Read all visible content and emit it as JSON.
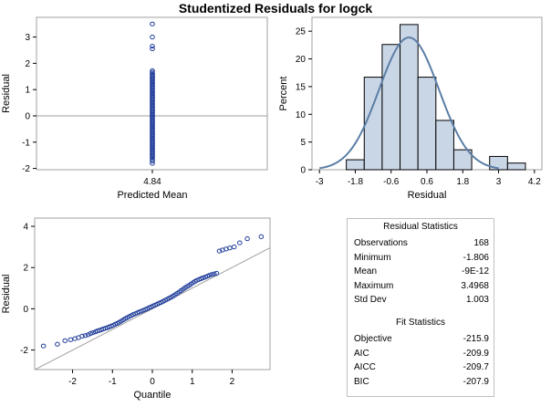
{
  "title": "Studentized Residuals for logck",
  "chart_data": [
    {
      "type": "scatter",
      "id": "residual-vs-predicted",
      "xlabel": "Predicted Mean",
      "ylabel": "Residual",
      "x_ticks": [
        "4.84"
      ],
      "y_ticks": [
        "-2",
        "-1",
        "0",
        "1",
        "2",
        "3"
      ],
      "ylim": [
        -2.05,
        3.75
      ],
      "reference_line_y": 0,
      "x_value": 4.84,
      "y_values": [
        3.4968,
        3.0,
        2.65,
        2.55,
        1.72,
        1.66,
        1.6,
        1.55,
        1.5,
        1.45,
        1.4,
        1.35,
        1.3,
        1.25,
        1.2,
        1.15,
        1.1,
        1.05,
        1.0,
        0.95,
        0.9,
        0.85,
        0.8,
        0.75,
        0.7,
        0.65,
        0.6,
        0.55,
        0.5,
        0.45,
        0.4,
        0.35,
        0.3,
        0.25,
        0.2,
        0.15,
        0.1,
        0.05,
        0.0,
        -0.05,
        -0.1,
        -0.15,
        -0.2,
        -0.25,
        -0.3,
        -0.35,
        -0.4,
        -0.45,
        -0.5,
        -0.55,
        -0.6,
        -0.65,
        -0.7,
        -0.75,
        -0.8,
        -0.85,
        -0.9,
        -0.95,
        -1.0,
        -1.05,
        -1.1,
        -1.15,
        -1.2,
        -1.25,
        -1.3,
        -1.35,
        -1.4,
        -1.45,
        -1.5,
        -1.55,
        -1.6,
        -1.66,
        -1.72,
        -1.806
      ],
      "marker_color": "#1f3c99"
    },
    {
      "type": "bar",
      "id": "residual-histogram",
      "xlabel": "Residual",
      "ylabel": "Percent",
      "x_ticks": [
        "-3",
        "-1.8",
        "-0.6",
        "0.6",
        "1.8",
        "3",
        "4.2"
      ],
      "x_tick_values": [
        -3,
        -1.8,
        -0.6,
        0.6,
        1.8,
        3,
        4.2
      ],
      "y_ticks": [
        "0",
        "5",
        "10",
        "15",
        "20",
        "25"
      ],
      "ylim": [
        0,
        27.5
      ],
      "xlim": [
        -3.25,
        4.45
      ],
      "bin_width": 0.6,
      "bin_starts": [
        -2.1,
        -1.5,
        -0.9,
        -0.3,
        0.3,
        0.9,
        1.5,
        2.1,
        2.7,
        3.3
      ],
      "values": [
        1.8,
        16.7,
        22.6,
        26.2,
        16.7,
        8.9,
        3.6,
        0.0,
        2.4,
        1.2
      ],
      "density_curve": {
        "type": "normal",
        "mean": 0.0,
        "std": 1.003,
        "color": "#5b7ea6"
      },
      "bar_fill": "#c9d6e6",
      "bar_stroke": "#000000"
    },
    {
      "type": "scatter",
      "id": "qq-plot",
      "xlabel": "Quantile",
      "ylabel": "Residual",
      "x_ticks": [
        "-2",
        "-1",
        "0",
        "1",
        "2"
      ],
      "y_ticks": [
        "-2",
        "0",
        "2",
        "4"
      ],
      "xlim": [
        -2.95,
        2.95
      ],
      "ylim": [
        -2.95,
        4.4
      ],
      "reference_line": {
        "intercept": 0.0,
        "slope": 1.003,
        "color": "#a0a0a0"
      },
      "x": [
        -2.73,
        -2.38,
        -2.19,
        -2.05,
        -1.94,
        -1.85,
        -1.76,
        -1.68,
        -1.61,
        -1.55,
        -1.49,
        -1.43,
        -1.38,
        -1.33,
        -1.28,
        -1.23,
        -1.18,
        -1.13,
        -1.08,
        -1.03,
        -0.98,
        -0.93,
        -0.88,
        -0.83,
        -0.78,
        -0.73,
        -0.68,
        -0.63,
        -0.58,
        -0.53,
        -0.48,
        -0.43,
        -0.38,
        -0.33,
        -0.28,
        -0.23,
        -0.18,
        -0.13,
        -0.08,
        -0.03,
        0.02,
        0.07,
        0.12,
        0.17,
        0.22,
        0.27,
        0.32,
        0.37,
        0.42,
        0.47,
        0.52,
        0.57,
        0.62,
        0.67,
        0.72,
        0.77,
        0.82,
        0.87,
        0.92,
        0.97,
        1.02,
        1.07,
        1.12,
        1.17,
        1.22,
        1.27,
        1.33,
        1.38,
        1.43,
        1.49,
        1.55,
        1.61,
        1.68,
        1.76,
        1.85,
        1.94,
        2.05,
        2.19,
        2.38,
        2.73
      ],
      "y": [
        -1.806,
        -1.72,
        -1.55,
        -1.5,
        -1.45,
        -1.4,
        -1.33,
        -1.3,
        -1.26,
        -1.2,
        -1.16,
        -1.12,
        -1.08,
        -1.05,
        -1.02,
        -0.98,
        -0.95,
        -0.92,
        -0.88,
        -0.84,
        -0.8,
        -0.75,
        -0.71,
        -0.66,
        -0.6,
        -0.54,
        -0.48,
        -0.43,
        -0.38,
        -0.33,
        -0.28,
        -0.24,
        -0.2,
        -0.16,
        -0.12,
        -0.08,
        -0.04,
        0.0,
        0.05,
        0.09,
        0.14,
        0.18,
        0.22,
        0.27,
        0.31,
        0.36,
        0.41,
        0.46,
        0.51,
        0.56,
        0.62,
        0.68,
        0.74,
        0.81,
        0.88,
        0.95,
        1.02,
        1.08,
        1.13,
        1.2,
        1.27,
        1.33,
        1.38,
        1.42,
        1.46,
        1.5,
        1.54,
        1.58,
        1.62,
        1.66,
        1.69,
        1.72,
        2.8,
        2.85,
        2.9,
        2.95,
        3.0,
        3.2,
        3.4,
        3.4968
      ],
      "marker_color": "#1f3c99"
    }
  ],
  "residual_stats": {
    "heading": "Residual Statistics",
    "rows": [
      {
        "label": "Observations",
        "value": "168"
      },
      {
        "label": "Minimum",
        "value": "-1.806"
      },
      {
        "label": "Mean",
        "value": "-9E-12"
      },
      {
        "label": "Maximum",
        "value": "3.4968"
      },
      {
        "label": "Std Dev",
        "value": "1.003"
      }
    ]
  },
  "fit_stats": {
    "heading": "Fit Statistics",
    "rows": [
      {
        "label": "Objective",
        "value": "-215.9"
      },
      {
        "label": "AIC",
        "value": "-209.9"
      },
      {
        "label": "AICC",
        "value": "-209.7"
      },
      {
        "label": "BIC",
        "value": "-207.9"
      }
    ]
  }
}
